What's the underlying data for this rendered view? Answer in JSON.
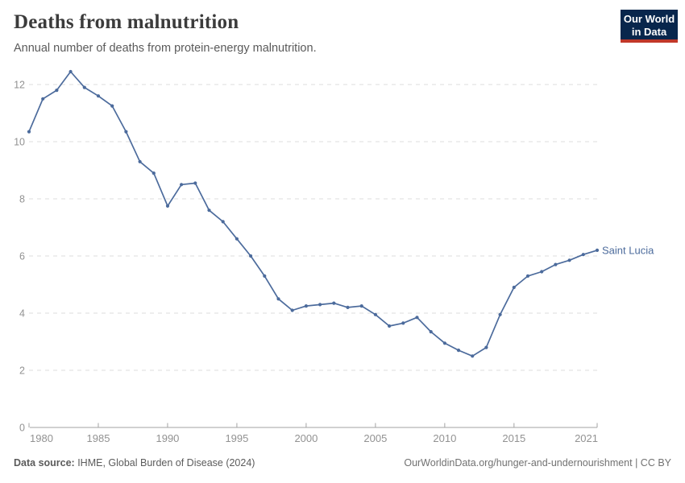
{
  "header": {
    "title": "Deaths from malnutrition",
    "subtitle": "Annual number of deaths from protein-energy malnutrition."
  },
  "logo": {
    "line1": "Our World",
    "line2": "in Data",
    "bg_color": "#08264C",
    "accent_color": "#C13829"
  },
  "chart_data": {
    "type": "line",
    "title": "Deaths from malnutrition",
    "xlabel": "",
    "ylabel": "",
    "xlim": [
      1980,
      2021
    ],
    "ylim": [
      0,
      12.8
    ],
    "grid": "horizontal-dashed",
    "legend_position": "end-of-line-label",
    "x_ticks": [
      1980,
      1985,
      1990,
      1995,
      2000,
      2005,
      2010,
      2015,
      2021
    ],
    "y_ticks": [
      0,
      2,
      4,
      6,
      8,
      10,
      12
    ],
    "x": [
      1980,
      1981,
      1982,
      1983,
      1984,
      1985,
      1986,
      1987,
      1988,
      1989,
      1990,
      1991,
      1992,
      1993,
      1994,
      1995,
      1996,
      1997,
      1998,
      1999,
      2000,
      2001,
      2002,
      2003,
      2004,
      2005,
      2006,
      2007,
      2008,
      2009,
      2010,
      2011,
      2012,
      2013,
      2014,
      2015,
      2016,
      2017,
      2018,
      2019,
      2020,
      2021
    ],
    "series": [
      {
        "name": "Saint Lucia",
        "color": "#4C6B9C",
        "values": [
          10.35,
          11.5,
          11.8,
          12.45,
          11.9,
          11.6,
          11.25,
          10.35,
          9.3,
          8.9,
          7.75,
          8.5,
          8.55,
          7.6,
          7.2,
          6.6,
          6.0,
          5.3,
          4.5,
          4.1,
          4.25,
          4.3,
          4.35,
          4.2,
          4.25,
          3.95,
          3.55,
          3.65,
          3.85,
          3.35,
          2.95,
          2.7,
          2.5,
          2.8,
          3.95,
          4.9,
          5.3,
          5.45,
          5.7,
          5.85,
          6.05,
          6.2
        ]
      }
    ],
    "axis_colors": {
      "tick_label": "#929292",
      "grid": "#dcdcdc",
      "axis_line": "#a3a3a3"
    }
  },
  "footer": {
    "source_label": "Data source:",
    "source_text": " IHME, Global Burden of Disease (2024)",
    "credit": "OurWorldinData.org/hunger-and-undernourishment | CC BY"
  }
}
